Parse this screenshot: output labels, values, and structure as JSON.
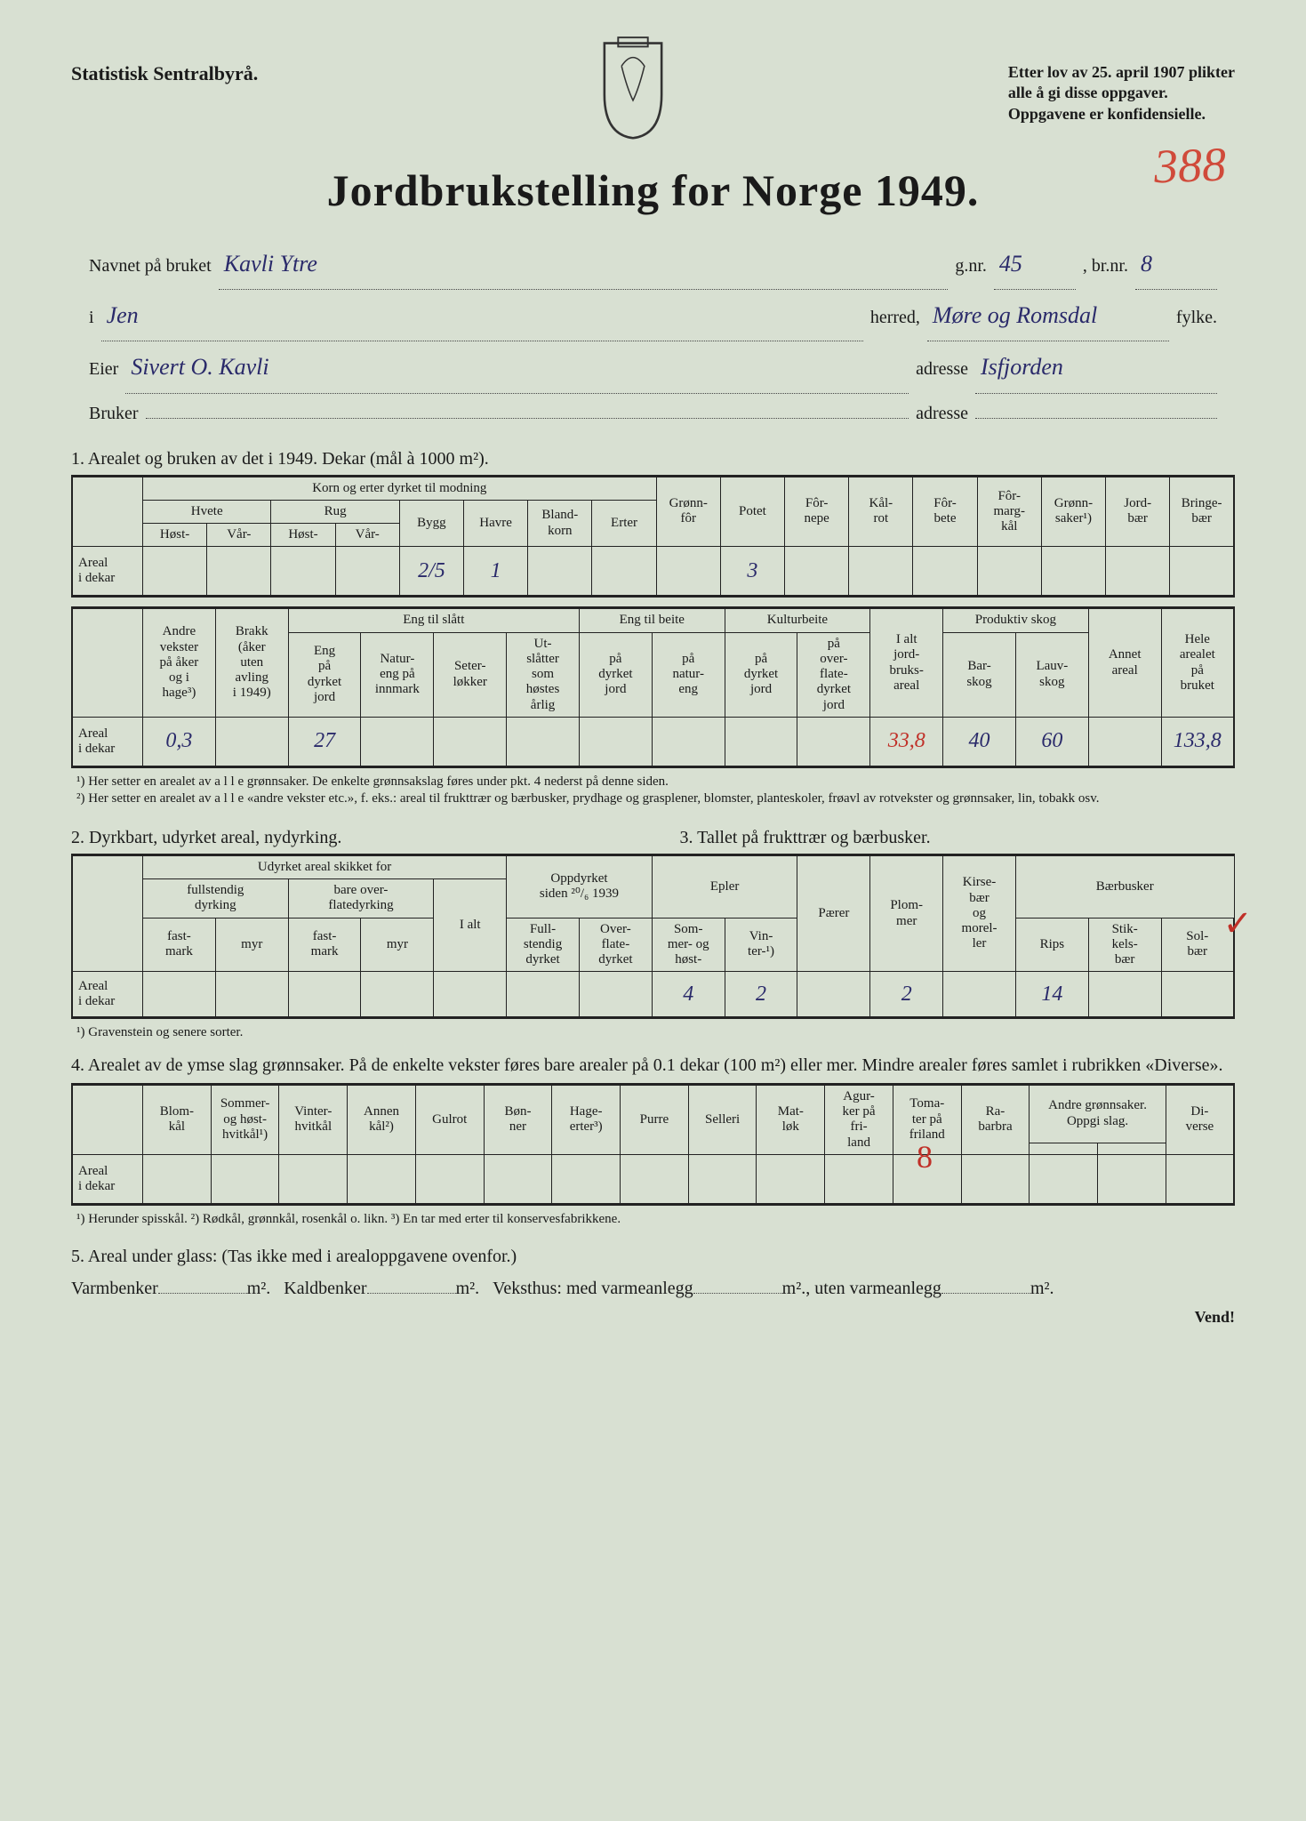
{
  "header": {
    "left": "Statistisk Sentralbyrå.",
    "right_line1": "Etter lov av 25. april 1907 plikter",
    "right_line2": "alle å gi disse oppgaver.",
    "right_line3": "Oppgavene er konfidensielle."
  },
  "stamp_number": "388",
  "title": "Jordbrukstelling for Norge 1949.",
  "meta": {
    "navn_label": "Navnet på bruket",
    "navn_val": "Kavli Ytre",
    "gnr_label": "g.nr.",
    "gnr_val": "45",
    "bnr_label": ", br.nr.",
    "bnr_val": "8",
    "i_label": "i",
    "i_val": "Jen",
    "herred_label": "herred,",
    "herred_val": "Møre og Romsdal",
    "fylke_label": "fylke.",
    "eier_label": "Eier",
    "eier_val": "Sivert O. Kavli",
    "adresse_label": "adresse",
    "adresse_val": "Isfjorden",
    "bruker_label": "Bruker",
    "bruker_val": "",
    "adresse2_val": ""
  },
  "sec1": {
    "heading": "1.  Arealet og bruken av det i 1949.  Dekar (mål à 1000 m²).",
    "group_korn": "Korn og erter dyrket til modning",
    "hvete": "Hvete",
    "rug": "Rug",
    "bygg": "Bygg",
    "havre": "Havre",
    "blandkorn": "Bland-\nkorn",
    "erter": "Erter",
    "host": "Høst-",
    "var": "Vår-",
    "gronnfor": "Grønn-\nfôr",
    "potet": "Potet",
    "fornepe": "Fôr-\nnepe",
    "kalrot": "Kål-\nrot",
    "forbete": "Fôr-\nbete",
    "formargkal": "Fôr-\nmarg-\nkål",
    "gronnsaker": "Grønn-\nsaker¹)",
    "jordbaer": "Jord-\nbær",
    "bringebaer": "Bringe-\nbær",
    "rowlabel": "Areal\ni dekar",
    "v_bygg": "2/5",
    "v_havre": "1",
    "v_potet": "3"
  },
  "sec1b": {
    "andre": "Andre\nvekster\npå åker\nog i\nhage³)",
    "brakk": "Brakk\n(åker\nuten\navling\ni 1949)",
    "engslatt": "Eng til slått",
    "eng_pa": "Eng\npå\ndyrket\njord",
    "natureng": "Natur-\neng på\ninnmark",
    "seter": "Seter-\nløkker",
    "utslatter": "Ut-\nslåtter\nsom\nhøstes\nårlig",
    "engbeite": "Eng til beite",
    "pa_dyrket": "på\ndyrket\njord",
    "pa_natur": "på\nnatur-\neng",
    "kulturbeite": "Kulturbeite",
    "pa_overflate": "på\nover-\nflate-\ndyrket\njord",
    "ialt": "I alt\njord-\nbruks-\nareal",
    "prodskog": "Produktiv skog",
    "barskog": "Bar-\nskog",
    "lauvskog": "Lauv-\nskog",
    "annet": "Annet\nareal",
    "hele": "Hele\narealet\npå\nbruket",
    "v_andre": "0,3",
    "v_eng": "27",
    "v_ialt": "33,8",
    "v_bar": "40",
    "v_lauv": "60",
    "v_hele": "133,8"
  },
  "notes1": {
    "n1": "¹) Her setter en arealet av a l l e grønnsaker.  De enkelte grønnsakslag føres under pkt. 4 nederst på denne siden.",
    "n2": "²) Her setter en arealet av a l l e «andre vekster etc.», f. eks.: areal til frukttrær og bærbusker, prydhage og grasplener, blomster, planteskoler, frøavl av rotvekster og grønnsaker, lin, tobakk osv."
  },
  "sec2": {
    "heading": "2.  Dyrkbart, udyrket areal, nydyrking.",
    "udyrket": "Udyrket areal skikket for",
    "fullstendig": "fullstendig\ndyrking",
    "bareover": "bare over-\nflatedyrking",
    "fastmark": "fast-\nmark",
    "myr": "myr",
    "ialt": "I alt",
    "oppdyrket": "Oppdyrket\nsiden ²⁰/₆ 1939",
    "full": "Full-\nstendig\ndyrket",
    "over": "Over-\nflate-\ndyrket"
  },
  "sec3": {
    "heading": "3.  Tallet på frukttrær og bærbusker.",
    "epler": "Epler",
    "sommer": "Som-\nmer- og\nhøst-",
    "vinter": "Vin-\nter-¹)",
    "paerer": "Pærer",
    "plommer": "Plom-\nmer",
    "kirse": "Kirse-\nbær\nog\nmorel-\nler",
    "baerbusker": "Bærbusker",
    "rips": "Rips",
    "stikkels": "Stik-\nkels-\nbær",
    "solbaer": "Sol-\nbær",
    "v_sommer": "4",
    "v_vinter": "2",
    "v_plommer": "2",
    "v_rips": "14",
    "note": "¹) Gravenstein og senere sorter."
  },
  "sec4": {
    "heading": "4.  Arealet av de ymse slag grønnsaker.  På de enkelte vekster føres bare arealer på 0.1 dekar (100 m²) eller mer.  Mindre arealer føres samlet i rubrikken «Diverse».",
    "blomkal": "Blom-\nkål",
    "sommerkal": "Sommer-\nog høst-\nhvitkål¹)",
    "vinterkal": "Vinter-\nhvitkål",
    "annenkal": "Annen\nkål²)",
    "gulrot": "Gulrot",
    "bonner": "Bøn-\nner",
    "hageerter": "Hage-\nerter³)",
    "purre": "Purre",
    "selleri": "Selleri",
    "matlok": "Mat-\nløk",
    "agurker": "Agur-\nker på\nfri-\nland",
    "tomater": "Toma-\nter på\nfriland",
    "rabarbra": "Ra-\nbarbra",
    "andre": "Andre grønnsaker.\nOppgi slag.",
    "diverse": "Di-\nverse",
    "note": "¹) Herunder spisskål.   ²) Rødkål, grønnkål, rosenkål o. likn.   ³) En tar med erter til konservesfabrikkene."
  },
  "sec5": {
    "heading": "5.  Areal under glass:   (Tas ikke med i arealoppgavene ovenfor.)",
    "varmbenker": "Varmbenker",
    "kaldbenker": "Kaldbenker",
    "veksthus": "Veksthus: med varmeanlegg",
    "uten": ", uten varmeanlegg",
    "m2": "m².",
    "vend": "Vend!"
  },
  "colors": {
    "paper": "#d8e0d2",
    "ink": "#1a1a1a",
    "handwriting": "#2a2a6a",
    "red": "#c03028",
    "stamp": "#d04a3a"
  }
}
